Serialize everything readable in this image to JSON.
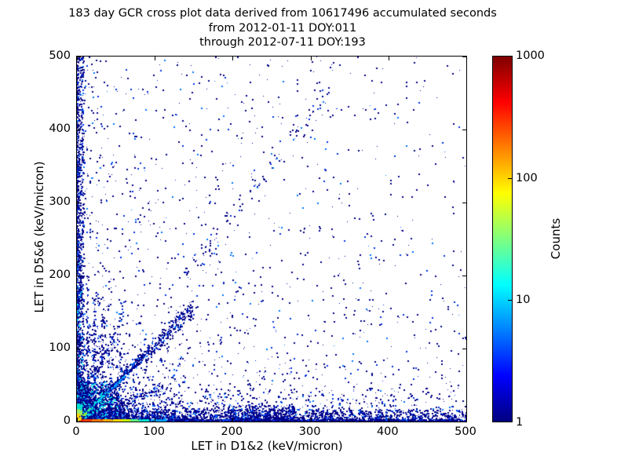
{
  "header": {
    "title_lines": [
      "183 day GCR cross plot data derived from 10617496 accumulated seconds",
      "from 2012-01-11 DOY:011",
      "through 2012-07-11 DOY:193"
    ]
  },
  "chart_data": {
    "type": "scatter",
    "subtype": "2d-density-cross-plot",
    "title": "183 day GCR cross plot data derived from 10617496 accumulated seconds from 2012-01-11 DOY:011 through 2012-07-11 DOY:193",
    "xlabel": "LET in D1&2 (keV/micron)",
    "ylabel": "LET in D5&6 (keV/micron)",
    "xlim": [
      0,
      500
    ],
    "ylim": [
      0,
      500
    ],
    "xticks": [
      0,
      100,
      200,
      300,
      400,
      500
    ],
    "yticks": [
      0,
      100,
      200,
      300,
      400,
      500
    ],
    "grid": false,
    "colorbar": {
      "label": "Counts",
      "scale": "log",
      "min": 1,
      "max": 1000,
      "ticks": [
        1000,
        100,
        10,
        1
      ],
      "colormap": "jet",
      "gradient_top_to_bottom": [
        {
          "pos": 0,
          "color": "#7f0000"
        },
        {
          "pos": 12.5,
          "color": "#ff0000"
        },
        {
          "pos": 37.5,
          "color": "#ffff00"
        },
        {
          "pos": 62.5,
          "color": "#00ffff"
        },
        {
          "pos": 87.5,
          "color": "#0000ff"
        },
        {
          "pos": 100,
          "color": "#00007f"
        }
      ]
    },
    "palette": {
      "navy": "#000087",
      "blue": "#0030e0",
      "ltblue": "#0075ff",
      "cyan": "#00d8e8"
    },
    "seed": 20120111,
    "ramps": {
      "xramp": [
        [
          8,
          "#cc0000"
        ],
        [
          20,
          "#f43b00"
        ],
        [
          34,
          "#ff7700"
        ],
        [
          46,
          "#ffaa00"
        ],
        [
          58,
          "#ffd900"
        ],
        [
          68,
          "#c8f000"
        ],
        [
          80,
          "#5ef07e"
        ],
        [
          95,
          "#00e0d0"
        ],
        [
          115,
          "#00a0ff"
        ]
      ],
      "yramp": [
        [
          5,
          "#ff8800"
        ],
        [
          10,
          "#ffd000"
        ],
        [
          16,
          "#9cf060"
        ],
        [
          24,
          "#00e0d0"
        ]
      ],
      "dramp": [
        [
          6,
          "#ffe000"
        ],
        [
          12,
          "#9cf030"
        ],
        [
          20,
          "#30f0a0"
        ],
        [
          45,
          "#00dcf0"
        ],
        [
          62,
          "#00b0ff"
        ]
      ]
    },
    "features": [
      {
        "type": "cloud",
        "n": 2400,
        "xmin": 0,
        "xmax": 500,
        "xpow": 2.3,
        "ymax": 500,
        "ypow": 2.6
      },
      {
        "type": "cloud",
        "n": 280,
        "xmin": 0,
        "xmax": 500,
        "xpow": 1.0,
        "ymax": 500,
        "ypow": 3.2
      },
      {
        "type": "cloud",
        "n": 420,
        "xmin": 195,
        "xmax": 280,
        "xpow": 1.0,
        "ymax": 22,
        "ypow": 2.0
      },
      {
        "type": "cloud",
        "n": 600,
        "xmin": 0,
        "xmax": 120,
        "xpow": 2.0,
        "ymax": 120,
        "ypow": 2.0
      },
      {
        "type": "hband",
        "n": 2300,
        "xmax": 500,
        "xpow": 1.5,
        "ymax": 16,
        "ypow": 1.7
      },
      {
        "type": "hband",
        "n": 900,
        "xmax": 500,
        "xpow": 1.9,
        "ymax": 45,
        "ypow": 2.0
      },
      {
        "type": "vband",
        "n": 1500,
        "ymax": 500,
        "ypow": 1.7,
        "xmax": 9,
        "xpow": 1.8,
        "cyanFade": 280
      },
      {
        "type": "ray",
        "n": 700,
        "tmax": 150,
        "tpow": 1.3,
        "slope": 1.04,
        "jitter": 0.1
      },
      {
        "type": "band",
        "n": 110,
        "t0": 140,
        "t1": 325,
        "slope": 1.4,
        "jitter": 16
      },
      {
        "type": "vstreak",
        "n": 130,
        "x0": 14,
        "ymax": 200,
        "jx": 1.3
      },
      {
        "type": "vstreak",
        "n": 120,
        "x0": 23,
        "ymax": 175,
        "jx": 1.4
      },
      {
        "type": "vstreak",
        "n": 90,
        "x0": 33,
        "ymax": 150,
        "jx": 1.5
      },
      {
        "type": "vstreak",
        "n": 70,
        "x0": 44,
        "ymax": 120,
        "jx": 1.6
      },
      {
        "type": "vstreak",
        "n": 55,
        "x0": 56,
        "ymax": 95,
        "jx": 1.7
      },
      {
        "type": "ray",
        "n": 120,
        "tmax": 60,
        "tpow": 1.2,
        "slope": 2.6,
        "jitter": 0.15
      },
      {
        "type": "ray",
        "n": 100,
        "tmax": 45,
        "tpow": 1.2,
        "slope": 3.8,
        "jitter": 0.15
      },
      {
        "type": "ray",
        "n": 130,
        "tmax": 140,
        "tpow": 1.2,
        "slope": 0.42,
        "jitter": 0.15
      },
      {
        "type": "blob",
        "n": 1600,
        "xmax": 55,
        "ymax": 55,
        "pow": 1.9,
        "cyan": 0.3,
        "cyanR": 150
      },
      {
        "type": "vband",
        "n": 330,
        "ymax": 30,
        "ypow": 2.0,
        "xmax": 6,
        "xpow": 1.0,
        "ramp": "yramp"
      },
      {
        "type": "hband",
        "n": 1400,
        "xmax": 500,
        "xpow": 2.2,
        "ymax": 2.6,
        "ypow": 1.0,
        "ramp": "xramp"
      },
      {
        "type": "diag",
        "n": 520,
        "tmax": 62,
        "tpow": 1.4,
        "jitter": 1.3,
        "ramp": "dramp"
      }
    ]
  }
}
